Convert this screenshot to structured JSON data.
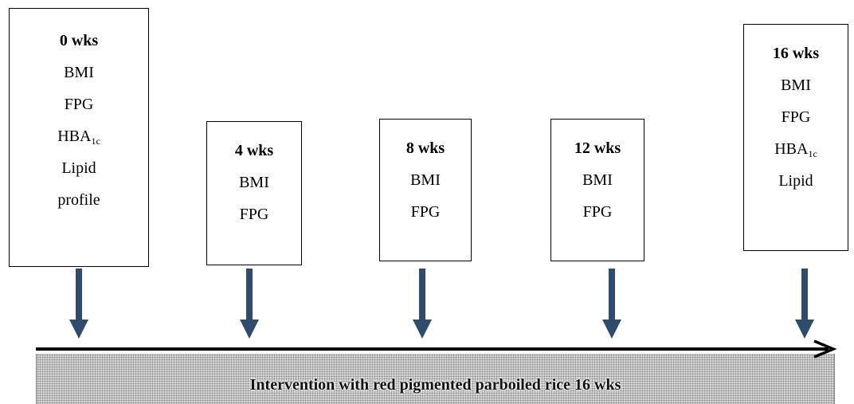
{
  "boxes": [
    {
      "week": "0 wks",
      "items": [
        "BMI",
        "FPG"
      ],
      "hba_base": "HBA",
      "hba_sub": "1c",
      "items_after": [
        "Lipid",
        "profile"
      ]
    },
    {
      "week": "4 wks",
      "items": [
        "BMI",
        "FPG"
      ]
    },
    {
      "week": "8 wks",
      "items": [
        "BMI",
        "FPG"
      ]
    },
    {
      "week": "12 wks",
      "items": [
        "BMI",
        "FPG"
      ]
    },
    {
      "week": "16 wks",
      "items": [
        "BMI",
        "FPG"
      ],
      "hba_base": "HBA",
      "hba_sub": "1c",
      "items_after": [
        "Lipid"
      ]
    }
  ],
  "intervention": {
    "label": "Intervention with red pigmented parboiled rice 16 wks"
  },
  "colors": {
    "arrow": "#2f4b6e",
    "timeline": "#000000"
  }
}
